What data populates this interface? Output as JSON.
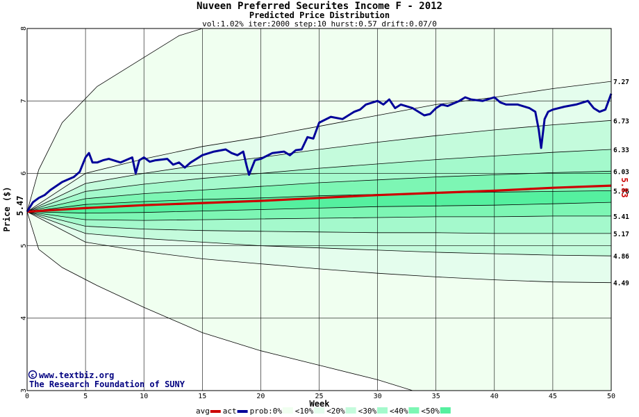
{
  "chart_data": {
    "type": "area",
    "title": "Nuveen Preferred Securites Income F - 2012",
    "subtitle": "Predicted Price Distribution",
    "params": "vol:1.02% iter:2000 step:10 hurst:0.57 drift:0.07/0",
    "xlabel": "Week",
    "ylabel": "Price ($)",
    "xlim": [
      0,
      50
    ],
    "ylim": [
      3,
      8
    ],
    "x_ticks": [
      "0",
      "5",
      "10",
      "15",
      "20",
      "25",
      "30",
      "35",
      "40",
      "45",
      "50"
    ],
    "y_ticks": [
      "3",
      "4",
      "5",
      "6",
      "7",
      "8"
    ],
    "grid": true,
    "start_label": "5.47",
    "current_label": "5.83",
    "right_labels": [
      "7.27",
      "6.73",
      "6.33",
      "6.03",
      "5.76",
      "5.41",
      "5.17",
      "4.86",
      "4.49"
    ],
    "credit_line1": "www.textbiz.org",
    "credit_line2": "The Research Foundation of SUNY",
    "bands": [
      {
        "name": "prob:0%",
        "color": "#f0fff0",
        "upper": [
          [
            0,
            5.47
          ],
          [
            1,
            6.05
          ],
          [
            3,
            6.7
          ],
          [
            6,
            7.2
          ],
          [
            10,
            7.6
          ],
          [
            13,
            7.9
          ],
          [
            15,
            8.0
          ],
          [
            50,
            8.0
          ]
        ],
        "lower": [
          [
            0,
            5.47
          ],
          [
            1,
            4.95
          ],
          [
            3,
            4.7
          ],
          [
            6,
            4.45
          ],
          [
            10,
            4.15
          ],
          [
            15,
            3.8
          ],
          [
            20,
            3.55
          ],
          [
            25,
            3.35
          ],
          [
            30,
            3.15
          ],
          [
            33,
            3.0
          ],
          [
            50,
            3.0
          ]
        ]
      },
      {
        "name": "<10%",
        "color": "#e4fded",
        "upper": [
          [
            0,
            5.47
          ],
          [
            5,
            6.0
          ],
          [
            10,
            6.2
          ],
          [
            15,
            6.37
          ],
          [
            20,
            6.5
          ],
          [
            25,
            6.65
          ],
          [
            30,
            6.8
          ],
          [
            35,
            6.95
          ],
          [
            40,
            7.05
          ],
          [
            45,
            7.17
          ],
          [
            50,
            7.27
          ]
        ],
        "lower": [
          [
            0,
            5.47
          ],
          [
            5,
            5.05
          ],
          [
            10,
            4.92
          ],
          [
            15,
            4.82
          ],
          [
            20,
            4.75
          ],
          [
            25,
            4.68
          ],
          [
            30,
            4.62
          ],
          [
            35,
            4.57
          ],
          [
            40,
            4.53
          ],
          [
            45,
            4.5
          ],
          [
            50,
            4.49
          ]
        ]
      },
      {
        "name": "<20%",
        "color": "#c4fbdc",
        "upper": [
          [
            0,
            5.47
          ],
          [
            5,
            5.86
          ],
          [
            10,
            6.0
          ],
          [
            15,
            6.12
          ],
          [
            20,
            6.22
          ],
          [
            25,
            6.33
          ],
          [
            30,
            6.43
          ],
          [
            35,
            6.52
          ],
          [
            40,
            6.6
          ],
          [
            45,
            6.67
          ],
          [
            50,
            6.73
          ]
        ],
        "lower": [
          [
            0,
            5.47
          ],
          [
            5,
            5.17
          ],
          [
            10,
            5.1
          ],
          [
            15,
            5.05
          ],
          [
            20,
            5.0
          ],
          [
            25,
            4.97
          ],
          [
            30,
            4.94
          ],
          [
            35,
            4.91
          ],
          [
            40,
            4.89
          ],
          [
            45,
            4.87
          ],
          [
            50,
            4.86
          ]
        ]
      },
      {
        "name": "<30%",
        "color": "#a4f9cc",
        "upper": [
          [
            0,
            5.47
          ],
          [
            5,
            5.75
          ],
          [
            10,
            5.85
          ],
          [
            15,
            5.93
          ],
          [
            20,
            6.0
          ],
          [
            25,
            6.07
          ],
          [
            30,
            6.13
          ],
          [
            35,
            6.19
          ],
          [
            40,
            6.24
          ],
          [
            45,
            6.29
          ],
          [
            50,
            6.33
          ]
        ],
        "lower": [
          [
            0,
            5.47
          ],
          [
            5,
            5.27
          ],
          [
            10,
            5.23
          ],
          [
            15,
            5.21
          ],
          [
            20,
            5.2
          ],
          [
            25,
            5.19
          ],
          [
            30,
            5.18
          ],
          [
            35,
            5.18
          ],
          [
            40,
            5.17
          ],
          [
            45,
            5.17
          ],
          [
            50,
            5.17
          ]
        ]
      },
      {
        "name": "<40%",
        "color": "#7df6b4",
        "upper": [
          [
            0,
            5.47
          ],
          [
            5,
            5.65
          ],
          [
            10,
            5.72
          ],
          [
            15,
            5.77
          ],
          [
            20,
            5.82
          ],
          [
            25,
            5.87
          ],
          [
            30,
            5.91
          ],
          [
            35,
            5.95
          ],
          [
            40,
            5.98
          ],
          [
            45,
            6.01
          ],
          [
            50,
            6.03
          ]
        ],
        "lower": [
          [
            0,
            5.47
          ],
          [
            5,
            5.36
          ],
          [
            10,
            5.35
          ],
          [
            15,
            5.36
          ],
          [
            20,
            5.37
          ],
          [
            25,
            5.38
          ],
          [
            30,
            5.39
          ],
          [
            35,
            5.4
          ],
          [
            40,
            5.4
          ],
          [
            45,
            5.41
          ],
          [
            50,
            5.41
          ]
        ]
      },
      {
        "name": "<50%",
        "color": "#55f09f",
        "upper": [
          [
            0,
            5.47
          ],
          [
            5,
            5.57
          ],
          [
            10,
            5.61
          ],
          [
            15,
            5.64
          ],
          [
            20,
            5.66
          ],
          [
            25,
            5.69
          ],
          [
            30,
            5.71
          ],
          [
            35,
            5.73
          ],
          [
            40,
            5.74
          ],
          [
            45,
            5.75
          ],
          [
            50,
            5.76
          ]
        ],
        "lower": [
          [
            0,
            5.47
          ],
          [
            5,
            5.45
          ],
          [
            10,
            5.46
          ],
          [
            15,
            5.48
          ],
          [
            20,
            5.5
          ],
          [
            25,
            5.52
          ],
          [
            30,
            5.54
          ],
          [
            35,
            5.55
          ],
          [
            40,
            5.56
          ],
          [
            45,
            5.58
          ],
          [
            50,
            5.6
          ]
        ]
      }
    ],
    "series": [
      {
        "name": "avg",
        "color": "#cc0000",
        "x": [
          0,
          5,
          10,
          15,
          20,
          25,
          30,
          35,
          40,
          45,
          50
        ],
        "values": [
          5.47,
          5.52,
          5.56,
          5.59,
          5.62,
          5.66,
          5.7,
          5.73,
          5.76,
          5.8,
          5.83
        ]
      },
      {
        "name": "act",
        "color": "#000099",
        "x": [
          0,
          0.5,
          1,
          1.5,
          2,
          3,
          4,
          4.5,
          5,
          5.3,
          5.6,
          6,
          6.5,
          7,
          8,
          9,
          9.3,
          9.6,
          10,
          10.5,
          11,
          12,
          12.5,
          13,
          13.5,
          14,
          15,
          16,
          17,
          17.5,
          18,
          18.5,
          18.8,
          19,
          19.5,
          20,
          21,
          22,
          22.5,
          23,
          23.5,
          24,
          24.5,
          25,
          26,
          27,
          27.5,
          28,
          28.5,
          29,
          30,
          30.5,
          31,
          31.5,
          32,
          33,
          34,
          34.5,
          35,
          35.5,
          36,
          37,
          37.5,
          38,
          39,
          40,
          40.5,
          41,
          42,
          43,
          43.5,
          43.8,
          44,
          44.3,
          44.6,
          45,
          46,
          47,
          48,
          48.5,
          49,
          49.5,
          50
        ],
        "values": [
          5.47,
          5.6,
          5.66,
          5.7,
          5.77,
          5.88,
          5.95,
          6.02,
          6.22,
          6.28,
          6.15,
          6.15,
          6.18,
          6.2,
          6.15,
          6.22,
          6.0,
          6.18,
          6.22,
          6.16,
          6.18,
          6.2,
          6.12,
          6.15,
          6.08,
          6.15,
          6.25,
          6.3,
          6.33,
          6.28,
          6.25,
          6.3,
          6.1,
          5.98,
          6.18,
          6.2,
          6.28,
          6.3,
          6.25,
          6.32,
          6.33,
          6.5,
          6.48,
          6.7,
          6.78,
          6.75,
          6.8,
          6.85,
          6.88,
          6.95,
          7.0,
          6.95,
          7.02,
          6.9,
          6.95,
          6.9,
          6.8,
          6.82,
          6.9,
          6.95,
          6.93,
          7.0,
          7.05,
          7.02,
          7.0,
          7.05,
          6.98,
          6.95,
          6.95,
          6.9,
          6.85,
          6.6,
          6.35,
          6.75,
          6.85,
          6.88,
          6.92,
          6.95,
          7.0,
          6.9,
          6.85,
          6.88,
          7.1
        ]
      }
    ]
  },
  "legend": {
    "items": [
      {
        "label": "avg",
        "color": "#cc0000",
        "kind": "line"
      },
      {
        "label": "act",
        "color": "#000099",
        "kind": "line"
      },
      {
        "label": "prob:0%",
        "color": "#f0fff0",
        "kind": "box"
      },
      {
        "label": "<10%",
        "color": "#e4fded",
        "kind": "box"
      },
      {
        "label": "<20%",
        "color": "#c4fbdc",
        "kind": "box"
      },
      {
        "label": "<30%",
        "color": "#a4f9cc",
        "kind": "box"
      },
      {
        "label": "<40%",
        "color": "#7df6b4",
        "kind": "box"
      },
      {
        "label": "<50%",
        "color": "#55f09f",
        "kind": "box"
      }
    ]
  },
  "colors": {
    "grid": "#000000",
    "band_border": "#000000",
    "credit": "#000080",
    "current_label": "#cc0000"
  }
}
